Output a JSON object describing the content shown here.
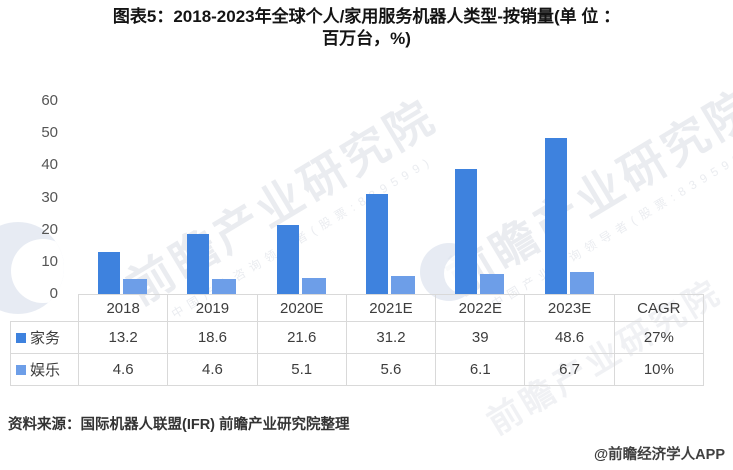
{
  "title": {
    "line1": "图表5：2018-2023年全球个人/家用服务机器人类型-按销量(单 位 ：",
    "line2": "百万台，%)"
  },
  "chart_data": {
    "type": "bar",
    "categories": [
      "2018",
      "2019",
      "2020E",
      "2021E",
      "2022E",
      "2023E"
    ],
    "series": [
      {
        "name": "家务",
        "color": "#3e82de",
        "values": [
          13.2,
          18.6,
          21.6,
          31.2,
          39,
          48.6
        ],
        "cagr": "27%"
      },
      {
        "name": "娱乐",
        "color": "#6d9ee8",
        "values": [
          4.6,
          4.6,
          5.1,
          5.6,
          6.1,
          6.7
        ],
        "cagr": "10%"
      }
    ],
    "title": "2018-2023年全球个人/家用服务机器人类型-按销量",
    "xlabel": "",
    "ylabel": "",
    "ylim": [
      0,
      60
    ],
    "yticks": [
      0,
      10,
      20,
      30,
      40,
      50,
      60
    ],
    "grid": false,
    "legend_position": "table-rows-left",
    "table_extra_column": "CAGR"
  },
  "watermark": {
    "text_main": "前瞻产业研究院",
    "text_sub": "中国产业咨询领导者(股票:839599)"
  },
  "source": "资料来源：国际机器人联盟(IFR)  前瞻产业研究院整理",
  "credit": "@前瞻经济学人APP"
}
